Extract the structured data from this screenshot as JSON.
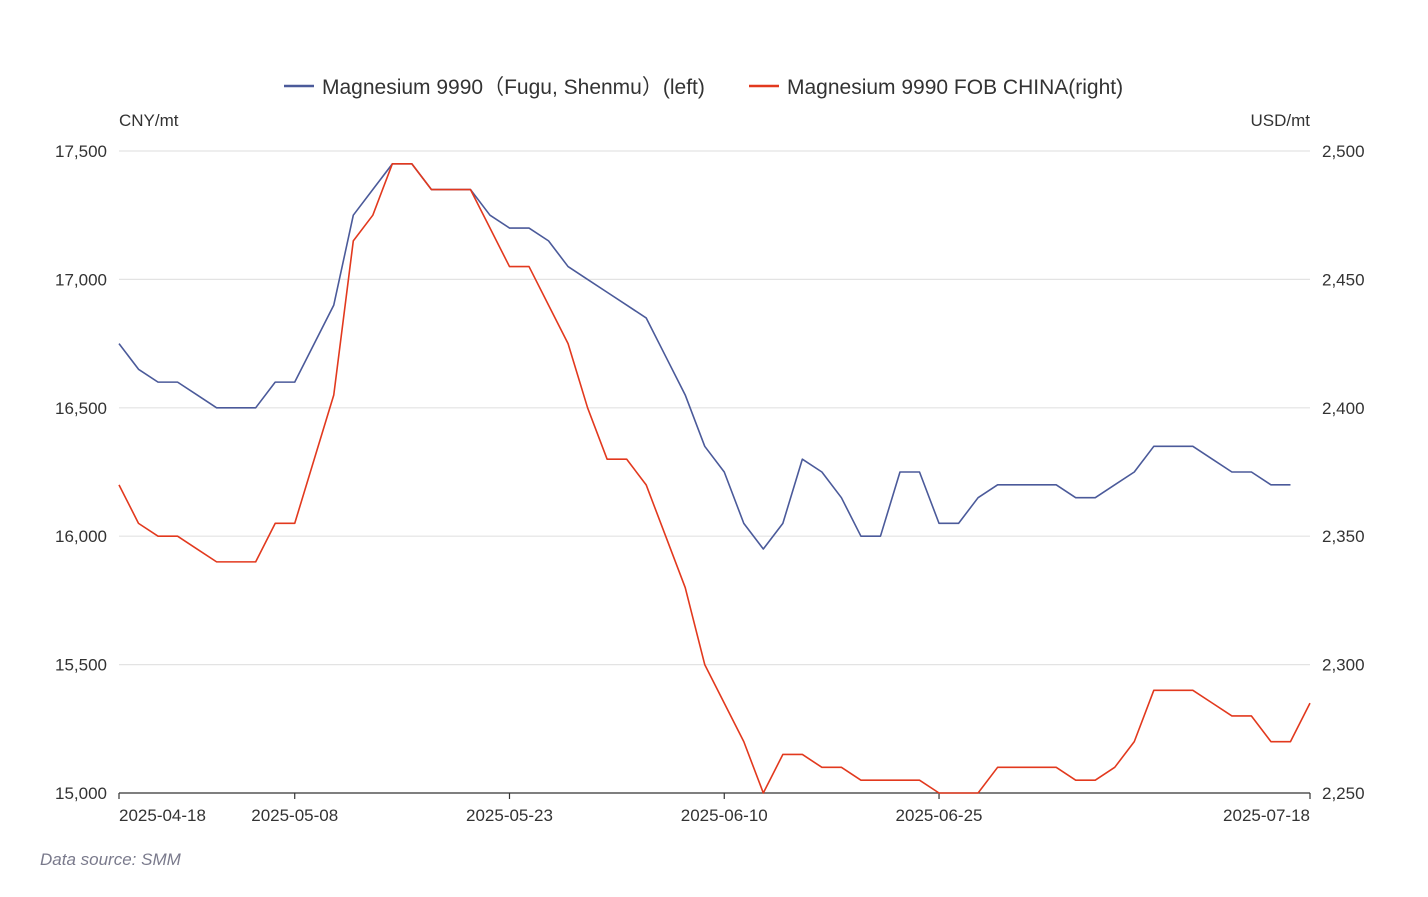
{
  "chart_data": {
    "type": "line",
    "legend_position": "top-center",
    "grid": true,
    "left_unit": "CNY/mt",
    "right_unit": "USD/mt",
    "source": "Data source:  SMM",
    "x_labels": [
      "2025-04-18",
      "2025-05-08",
      "2025-05-23",
      "2025-06-10",
      "2025-06-25",
      "2025-07-18"
    ],
    "x_label_indices": [
      0,
      9,
      20,
      31,
      42,
      61
    ],
    "x_count": 62,
    "y_left": {
      "min": 15000,
      "max": 17500,
      "ticks": [
        15000,
        15500,
        16000,
        16500,
        17000,
        17500
      ],
      "tick_labels": [
        "15,000",
        "15,500",
        "16,000",
        "16,500",
        "17,000",
        "17,500"
      ]
    },
    "y_right": {
      "min": 2250,
      "max": 2500,
      "ticks": [
        2250,
        2300,
        2350,
        2400,
        2450,
        2500
      ],
      "tick_labels": [
        "2,250",
        "2,300",
        "2,350",
        "2,400",
        "2,450",
        "2,500"
      ]
    },
    "series": [
      {
        "name": "Magnesium 9990（Fugu, Shenmu）(left)",
        "axis": "left",
        "color": "#4b5a9a",
        "values": [
          16750,
          16650,
          16600,
          16600,
          16550,
          16500,
          16500,
          16500,
          16600,
          16600,
          16750,
          16900,
          17250,
          17350,
          17450,
          17450,
          17350,
          17350,
          17350,
          17250,
          17200,
          17200,
          17150,
          17050,
          17000,
          16950,
          16900,
          16850,
          16700,
          16550,
          16350,
          16250,
          16050,
          15950,
          16050,
          16300,
          16250,
          16150,
          16000,
          16000,
          16250,
          16250,
          16050,
          16050,
          16150,
          16200,
          16200,
          16200,
          16200,
          16150,
          16150,
          16200,
          16250,
          16350,
          16350,
          16350,
          16300,
          16250,
          16250,
          16200,
          16200,
          null
        ]
      },
      {
        "name": "Magnesium 9990 FOB CHINA(right)",
        "axis": "right",
        "color": "#e2391e",
        "values": [
          2370,
          2355,
          2350,
          2350,
          2345,
          2340,
          2340,
          2340,
          2355,
          2355,
          2380,
          2405,
          2465,
          2475,
          2495,
          2495,
          2485,
          2485,
          2485,
          2470,
          2455,
          2455,
          2440,
          2425,
          2400,
          2380,
          2380,
          2370,
          2350,
          2330,
          2300,
          2285,
          2270,
          2250,
          2265,
          2265,
          2260,
          2260,
          2255,
          2255,
          2255,
          2255,
          2250,
          2250,
          2250,
          2260,
          2260,
          2260,
          2260,
          2255,
          2255,
          2260,
          2270,
          2290,
          2290,
          2290,
          2285,
          2280,
          2280,
          2270,
          2270,
          2285
        ]
      }
    ]
  }
}
